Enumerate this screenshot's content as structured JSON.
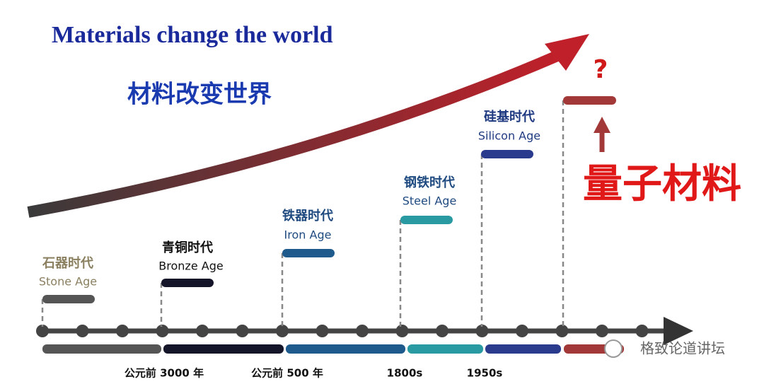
{
  "header": {
    "title": "Materials change the world",
    "subtitle": "材料改变世界"
  },
  "ages": [
    {
      "cn": "石器时代",
      "en": "Stone Age"
    },
    {
      "cn": "青铜时代",
      "en": "Bronze Age"
    },
    {
      "cn": "铁器时代",
      "en": "Iron Age"
    },
    {
      "cn": "钢铁时代",
      "en": "Steel Age"
    },
    {
      "cn": "硅基时代",
      "en": "Silicon Age"
    }
  ],
  "future": {
    "mark": "?",
    "label": "量子材料"
  },
  "timeline_labels": [
    "公元前 3000 年",
    "公元前 500 年",
    "1800s",
    "1950s"
  ],
  "watermark": "格致论道讲坛"
}
